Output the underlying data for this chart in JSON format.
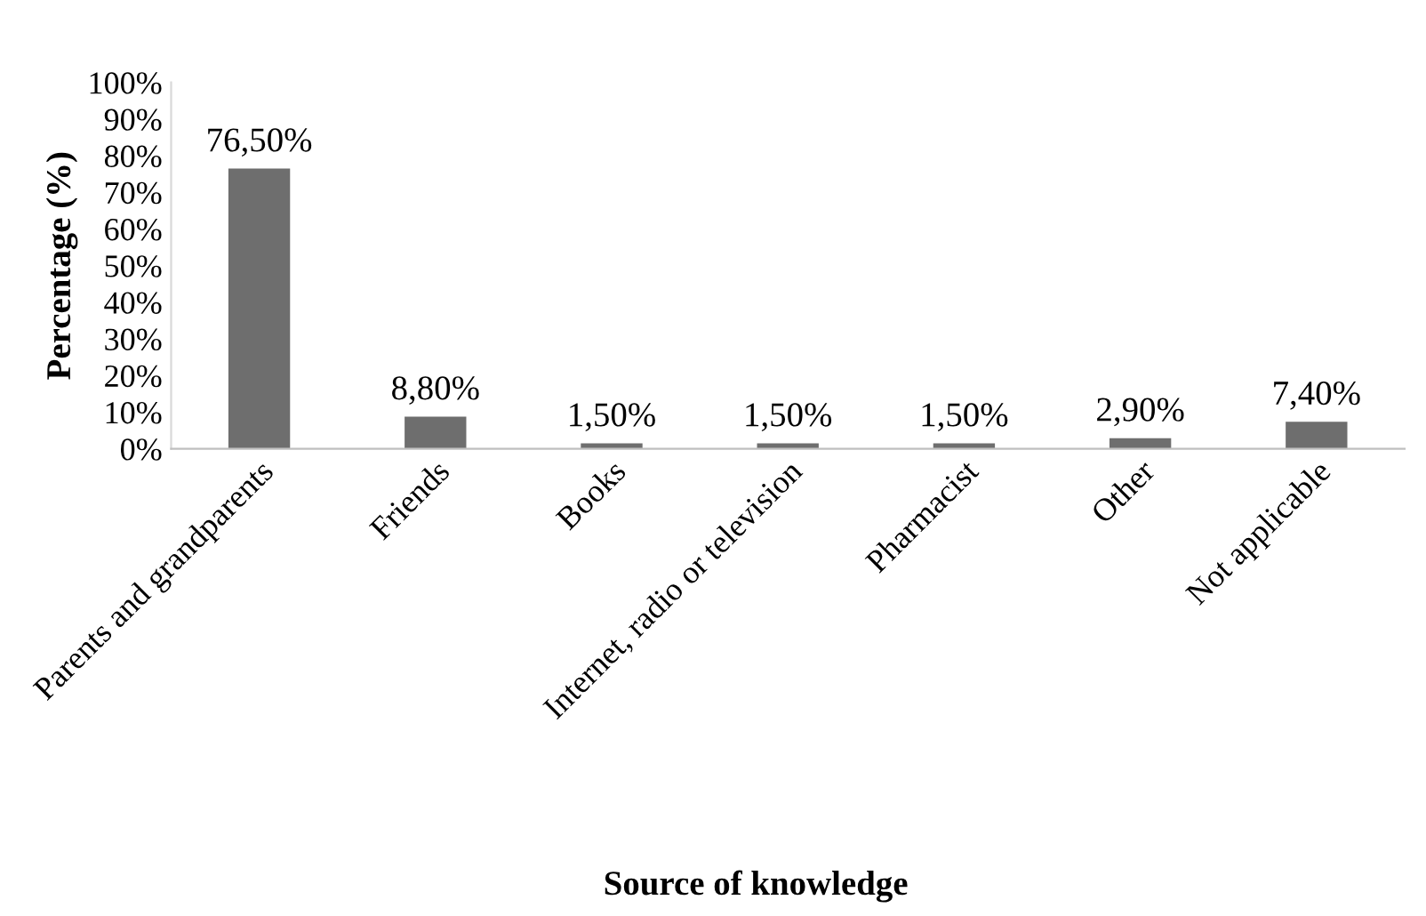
{
  "chart_data": {
    "type": "bar",
    "xlabel": "Source of knowledge",
    "ylabel": "Percentage (%)",
    "categories": [
      "Parents and grandparents",
      "Friends",
      "Books",
      "Internet, radio or television",
      "Pharmacist",
      "Other",
      "Not applicable"
    ],
    "values": [
      76.5,
      8.8,
      1.5,
      1.5,
      1.5,
      2.9,
      7.4
    ],
    "value_labels": [
      "76,50%",
      "8,80%",
      "1,50%",
      "1,50%",
      "1,50%",
      "2,90%",
      "7,40%"
    ],
    "color": "#6e6e6e",
    "ylim": [
      0,
      100
    ],
    "yticks": [
      {
        "value": 0,
        "label": "0%"
      },
      {
        "value": 10,
        "label": "10%"
      },
      {
        "value": 20,
        "label": "20%"
      },
      {
        "value": 30,
        "label": "30%"
      },
      {
        "value": 40,
        "label": "40%"
      },
      {
        "value": 50,
        "label": "50%"
      },
      {
        "value": 60,
        "label": "60%"
      },
      {
        "value": 70,
        "label": "70%"
      },
      {
        "value": 80,
        "label": "80%"
      },
      {
        "value": 90,
        "label": "90%"
      },
      {
        "value": 100,
        "label": "100%"
      }
    ],
    "grid": false
  }
}
